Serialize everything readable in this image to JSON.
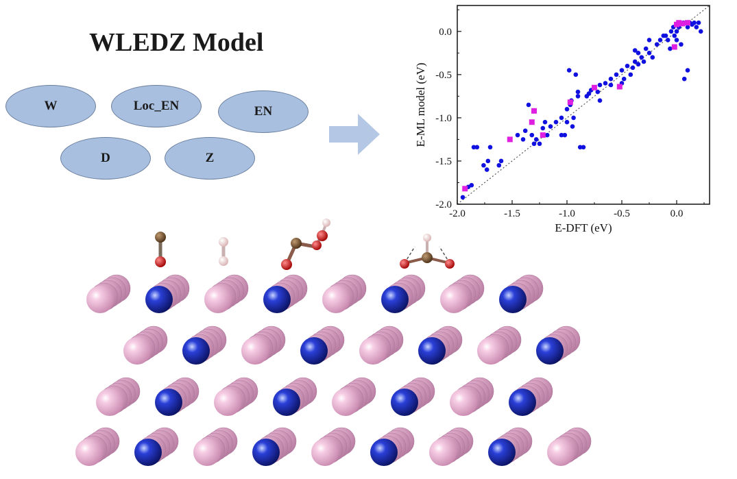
{
  "title": "WLEDZ Model",
  "features": [
    "W",
    "Loc_EN",
    "EN",
    "D",
    "Z"
  ],
  "colors": {
    "ellipse_fill": "#a8bfdf",
    "arrow": "#b4c8e6",
    "series_blue": "#1010e0",
    "series_magenta": "#e020e0",
    "atom_pink": "#e8a9cf",
    "atom_blue": "#1f2fa0",
    "carbon": "#6b4a2a",
    "oxygen": "#dd1010",
    "hydrogen": "#f2d6d6"
  },
  "chart_data": {
    "type": "scatter",
    "xlabel": "E-DFT (eV)",
    "ylabel": "E-ML model (eV)",
    "xlim": [
      -2.0,
      0.3
    ],
    "ylim": [
      -2.0,
      0.3
    ],
    "xticks": [
      "-2.0",
      "-1.5",
      "-1.0",
      "-0.5",
      "0.0"
    ],
    "yticks": [
      "-2.0",
      "-1.5",
      "-1.0",
      "-0.5",
      "0.0"
    ],
    "tick_values": [
      -2.0,
      -1.5,
      -1.0,
      -0.5,
      0.0
    ],
    "reference_line": "y = x (dotted)",
    "series": [
      {
        "name": "blue",
        "marker": "circle",
        "points": [
          [
            -1.95,
            -1.92
          ],
          [
            -1.9,
            -1.8
          ],
          [
            -1.87,
            -1.78
          ],
          [
            -1.85,
            -1.34
          ],
          [
            -1.82,
            -1.34
          ],
          [
            -1.76,
            -1.55
          ],
          [
            -1.73,
            -1.6
          ],
          [
            -1.72,
            -1.5
          ],
          [
            -1.7,
            -1.34
          ],
          [
            -1.62,
            -1.55
          ],
          [
            -1.6,
            -1.5
          ],
          [
            -1.4,
            -1.25
          ],
          [
            -1.35,
            -0.85
          ],
          [
            -1.32,
            -1.2
          ],
          [
            -1.3,
            -1.3
          ],
          [
            -1.28,
            -1.25
          ],
          [
            -1.25,
            -1.3
          ],
          [
            -1.22,
            -1.12
          ],
          [
            -1.2,
            -1.05
          ],
          [
            -1.18,
            -1.2
          ],
          [
            -1.15,
            -1.1
          ],
          [
            -1.1,
            -1.05
          ],
          [
            -1.05,
            -1.0
          ],
          [
            -1.05,
            -1.2
          ],
          [
            -1.02,
            -1.2
          ],
          [
            -1.0,
            -1.05
          ],
          [
            -1.0,
            -0.9
          ],
          [
            -0.98,
            -0.45
          ],
          [
            -0.97,
            -0.85
          ],
          [
            -0.96,
            -0.8
          ],
          [
            -0.95,
            -1.1
          ],
          [
            -0.94,
            -1.0
          ],
          [
            -0.92,
            -0.5
          ],
          [
            -0.9,
            -0.7
          ],
          [
            -0.88,
            -1.34
          ],
          [
            -0.85,
            -1.34
          ],
          [
            -0.82,
            -0.75
          ],
          [
            -0.8,
            -0.72
          ],
          [
            -0.78,
            -0.68
          ],
          [
            -0.75,
            -0.65
          ],
          [
            -0.72,
            -0.7
          ],
          [
            -0.7,
            -0.62
          ],
          [
            -0.65,
            -0.6
          ],
          [
            -0.6,
            -0.55
          ],
          [
            -0.55,
            -0.5
          ],
          [
            -0.5,
            -0.45
          ],
          [
            -0.48,
            -0.55
          ],
          [
            -0.45,
            -0.4
          ],
          [
            -0.4,
            -0.42
          ],
          [
            -0.38,
            -0.35
          ],
          [
            -0.35,
            -0.38
          ],
          [
            -0.32,
            -0.3
          ],
          [
            -0.3,
            -0.35
          ],
          [
            -0.28,
            -0.2
          ],
          [
            -0.25,
            -0.25
          ],
          [
            -0.22,
            -0.3
          ],
          [
            -0.18,
            -0.15
          ],
          [
            -0.15,
            -0.1
          ],
          [
            -0.1,
            -0.05
          ],
          [
            -0.08,
            -0.1
          ],
          [
            -0.05,
            -0.0
          ],
          [
            -0.03,
            0.05
          ],
          [
            -0.02,
            -0.05
          ],
          [
            0.0,
            -0.1
          ],
          [
            0.0,
            0.0
          ],
          [
            0.02,
            0.05
          ],
          [
            0.04,
            -0.15
          ],
          [
            0.06,
            0.1
          ],
          [
            0.08,
            0.1
          ],
          [
            0.1,
            0.05
          ],
          [
            0.12,
            0.1
          ],
          [
            0.14,
            0.08
          ],
          [
            0.16,
            0.1
          ],
          [
            0.18,
            0.05
          ],
          [
            0.2,
            0.1
          ],
          [
            0.22,
            0.0
          ],
          [
            0.07,
            -0.55
          ],
          [
            0.1,
            -0.45
          ],
          [
            -0.6,
            -0.62
          ],
          [
            -0.7,
            -0.8
          ],
          [
            -0.9,
            -0.75
          ],
          [
            -0.5,
            -0.6
          ],
          [
            -0.42,
            -0.5
          ],
          [
            -0.35,
            -0.25
          ],
          [
            -0.38,
            -0.22
          ],
          [
            -1.45,
            -1.2
          ],
          [
            -1.38,
            -1.15
          ],
          [
            -0.25,
            -0.1
          ],
          [
            -0.12,
            -0.05
          ],
          [
            -0.06,
            -0.2
          ]
        ]
      },
      {
        "name": "magenta",
        "marker": "square",
        "points": [
          [
            -1.93,
            -1.82
          ],
          [
            -1.52,
            -1.25
          ],
          [
            -1.3,
            -0.92
          ],
          [
            -1.32,
            -1.05
          ],
          [
            -1.22,
            -1.2
          ],
          [
            -0.97,
            -0.82
          ],
          [
            -0.75,
            -0.65
          ],
          [
            -0.52,
            -0.64
          ],
          [
            -0.02,
            -0.18
          ],
          [
            0.0,
            0.08
          ],
          [
            0.02,
            0.1
          ],
          [
            0.1,
            0.1
          ],
          [
            0.05,
            0.09
          ]
        ]
      }
    ]
  }
}
